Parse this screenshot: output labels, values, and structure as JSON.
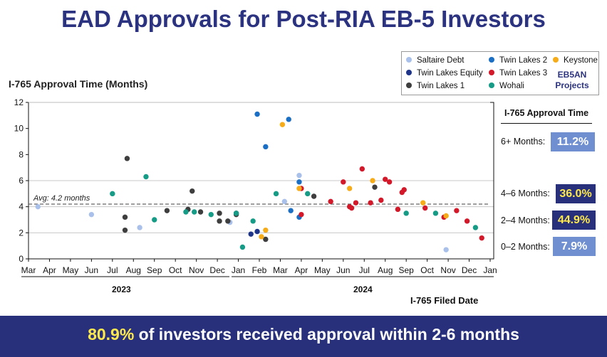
{
  "title": "EAD Approvals for Post-RIA EB-5 Investors",
  "y_axis_title": "I-765 Approval Time (Months)",
  "x_axis_title": "I-765 Filed Date",
  "legend": {
    "items": [
      {
        "name": "Saltaire Debt",
        "color": "#a9c1ea"
      },
      {
        "name": "Twin Lakes Equity",
        "color": "#1d3489"
      },
      {
        "name": "Twin Lakes 1",
        "color": "#3e3e3e"
      },
      {
        "name": "Twin Lakes 2",
        "color": "#1a6fc4"
      },
      {
        "name": "Twin Lakes 3",
        "color": "#d3182a"
      },
      {
        "name": "Wohali",
        "color": "#169b86"
      },
      {
        "name": "Keystone",
        "color": "#f5ac18"
      }
    ],
    "brand_line1": "EB5AN",
    "brand_line2": "Projects"
  },
  "panel": {
    "title": "I-765 Approval Time",
    "buckets": [
      {
        "label": "6+ Months:",
        "value": "11.2%",
        "style": "light"
      },
      {
        "label": "4–6 Months:",
        "value": "36.0%",
        "style": "dark"
      },
      {
        "label": "2–4 Months:",
        "value": "44.9%",
        "style": "dark"
      },
      {
        "label": "0–2 Months:",
        "value": "7.9%",
        "style": "light"
      }
    ]
  },
  "years": [
    "2023",
    "2024"
  ],
  "footer": {
    "highlight": "80.9%",
    "text": " of investors received approval within 2-6 months"
  },
  "chart_data": {
    "type": "scatter",
    "x_unit": "months since Mar 1, 2023",
    "x_tick_labels": [
      "Mar",
      "Apr",
      "May",
      "Jun",
      "Jul",
      "Aug",
      "Sep",
      "Oct",
      "Nov",
      "Dec",
      "Jan",
      "Feb",
      "Mar",
      "Apr",
      "May",
      "Jun",
      "Jul",
      "Aug",
      "Sep",
      "Oct",
      "Nov",
      "Dec",
      "Jan"
    ],
    "xlim": [
      0,
      22
    ],
    "ylim": [
      0,
      12
    ],
    "y_ticks": [
      0,
      2,
      4,
      6,
      8,
      10,
      12
    ],
    "avg_line": {
      "y": 4.2,
      "label": "Avg: 4.2 months"
    },
    "band_lines": [
      2,
      4,
      6
    ],
    "series": [
      {
        "name": "Saltaire Debt",
        "color": "#a9c1ea",
        "points": [
          [
            0.45,
            4.0
          ],
          [
            3.0,
            3.4
          ],
          [
            5.3,
            2.4
          ],
          [
            9.6,
            2.8
          ],
          [
            12.2,
            4.4
          ],
          [
            12.9,
            6.4
          ],
          [
            19.9,
            0.7
          ]
        ]
      },
      {
        "name": "Twin Lakes Equity",
        "color": "#1d3489",
        "points": [
          [
            10.6,
            1.9
          ],
          [
            10.9,
            2.1
          ]
        ]
      },
      {
        "name": "Twin Lakes 1",
        "color": "#3e3e3e",
        "points": [
          [
            4.7,
            7.7
          ],
          [
            4.6,
            3.2
          ],
          [
            4.6,
            2.2
          ],
          [
            6.6,
            3.7
          ],
          [
            7.6,
            3.8
          ],
          [
            7.8,
            5.2
          ],
          [
            8.2,
            3.6
          ],
          [
            9.1,
            3.5
          ],
          [
            9.1,
            2.9
          ],
          [
            9.5,
            2.9
          ],
          [
            9.9,
            3.5
          ],
          [
            9.9,
            3.4
          ],
          [
            11.3,
            1.5
          ],
          [
            13.6,
            4.8
          ],
          [
            16.5,
            5.5
          ]
        ]
      },
      {
        "name": "Twin Lakes 2",
        "color": "#1a6fc4",
        "points": [
          [
            10.9,
            11.1
          ],
          [
            11.3,
            8.6
          ],
          [
            12.4,
            10.7
          ],
          [
            12.5,
            3.7
          ],
          [
            12.9,
            3.2
          ],
          [
            12.9,
            5.9
          ]
        ]
      },
      {
        "name": "Twin Lakes 3",
        "color": "#d3182a",
        "points": [
          [
            13.0,
            5.4
          ],
          [
            13.0,
            3.4
          ],
          [
            14.4,
            4.4
          ],
          [
            15.0,
            5.9
          ],
          [
            15.3,
            4.0
          ],
          [
            15.4,
            3.9
          ],
          [
            15.6,
            4.3
          ],
          [
            15.9,
            6.9
          ],
          [
            16.3,
            4.3
          ],
          [
            16.8,
            4.5
          ],
          [
            17.0,
            6.1
          ],
          [
            17.2,
            5.9
          ],
          [
            17.6,
            3.8
          ],
          [
            17.8,
            5.1
          ],
          [
            17.9,
            5.3
          ],
          [
            18.9,
            3.9
          ],
          [
            19.8,
            3.2
          ],
          [
            20.4,
            3.7
          ],
          [
            20.9,
            2.9
          ],
          [
            21.6,
            1.6
          ]
        ]
      },
      {
        "name": "Wohali",
        "color": "#169b86",
        "points": [
          [
            4.0,
            5.0
          ],
          [
            5.6,
            6.3
          ],
          [
            6.0,
            3.0
          ],
          [
            7.5,
            3.6
          ],
          [
            7.9,
            3.6
          ],
          [
            8.7,
            3.4
          ],
          [
            9.9,
            3.5
          ],
          [
            10.2,
            0.9
          ],
          [
            10.7,
            2.9
          ],
          [
            11.8,
            5.0
          ],
          [
            13.3,
            5.0
          ],
          [
            18.0,
            3.5
          ],
          [
            19.4,
            3.5
          ],
          [
            21.3,
            2.4
          ]
        ]
      },
      {
        "name": "Keystone",
        "color": "#f5ac18",
        "points": [
          [
            11.1,
            1.7
          ],
          [
            11.3,
            2.2
          ],
          [
            12.1,
            10.3
          ],
          [
            12.9,
            5.4
          ],
          [
            15.3,
            5.4
          ],
          [
            16.4,
            6.0
          ],
          [
            18.8,
            4.3
          ],
          [
            19.9,
            3.3
          ]
        ]
      }
    ]
  }
}
